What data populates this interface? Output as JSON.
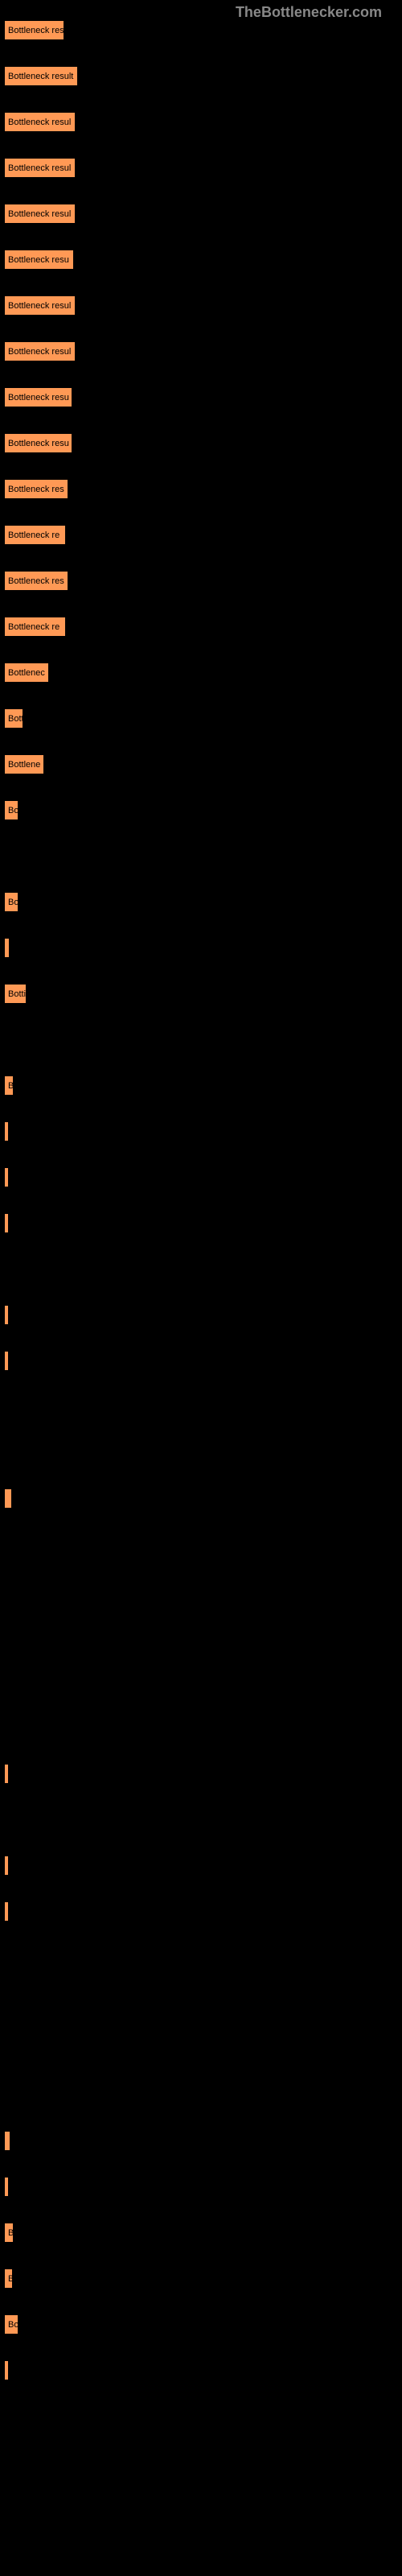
{
  "watermark": "TheBottlenecker.com",
  "chart": {
    "type": "bar",
    "background_color": "#000000",
    "bar_color": "#ff9955",
    "bar_border_color": "#000000",
    "text_color": "#000000",
    "bars": [
      {
        "label": "Bottleneck result",
        "width": 75
      },
      {
        "label": "Bottleneck result",
        "width": 92
      },
      {
        "label": "Bottleneck resul",
        "width": 89
      },
      {
        "label": "Bottleneck resul",
        "width": 89
      },
      {
        "label": "Bottleneck resul",
        "width": 89
      },
      {
        "label": "Bottleneck resu",
        "width": 87
      },
      {
        "label": "Bottleneck resul",
        "width": 89
      },
      {
        "label": "Bottleneck resul",
        "width": 89
      },
      {
        "label": "Bottleneck resu",
        "width": 85
      },
      {
        "label": "Bottleneck resu",
        "width": 85
      },
      {
        "label": "Bottleneck res",
        "width": 80
      },
      {
        "label": "Bottleneck re",
        "width": 77
      },
      {
        "label": "Bottleneck res",
        "width": 80
      },
      {
        "label": "Bottleneck re",
        "width": 77
      },
      {
        "label": "Bottlenec",
        "width": 56
      },
      {
        "label": "Bott",
        "width": 24
      },
      {
        "label": "Bottlene",
        "width": 50
      },
      {
        "label": "Bo",
        "width": 18
      },
      {
        "label": "",
        "width": 0
      },
      {
        "label": "Bo",
        "width": 18
      },
      {
        "label": "",
        "width": 7
      },
      {
        "label": "Botti",
        "width": 28
      },
      {
        "label": "",
        "width": 0
      },
      {
        "label": "B",
        "width": 12
      },
      {
        "label": "",
        "width": 3
      },
      {
        "label": "",
        "width": 3
      },
      {
        "label": "",
        "width": 3
      },
      {
        "label": "",
        "width": 0
      },
      {
        "label": "",
        "width": 3
      },
      {
        "label": "",
        "width": 2
      },
      {
        "label": "",
        "width": 0
      },
      {
        "label": "",
        "width": 0
      },
      {
        "label": "",
        "width": 10
      },
      {
        "label": "",
        "width": 0
      },
      {
        "label": "",
        "width": 0
      },
      {
        "label": "",
        "width": 0
      },
      {
        "label": "",
        "width": 0
      },
      {
        "label": "",
        "width": 0
      },
      {
        "label": "",
        "width": 2
      },
      {
        "label": "",
        "width": 0
      },
      {
        "label": "",
        "width": 2
      },
      {
        "label": "",
        "width": 2
      },
      {
        "label": "",
        "width": 0
      },
      {
        "label": "",
        "width": 0
      },
      {
        "label": "",
        "width": 0
      },
      {
        "label": "",
        "width": 0
      },
      {
        "label": "",
        "width": 8
      },
      {
        "label": "",
        "width": 2
      },
      {
        "label": "B",
        "width": 12
      },
      {
        "label": "B",
        "width": 11
      },
      {
        "label": "Bo",
        "width": 18
      },
      {
        "label": "",
        "width": 2
      }
    ]
  }
}
